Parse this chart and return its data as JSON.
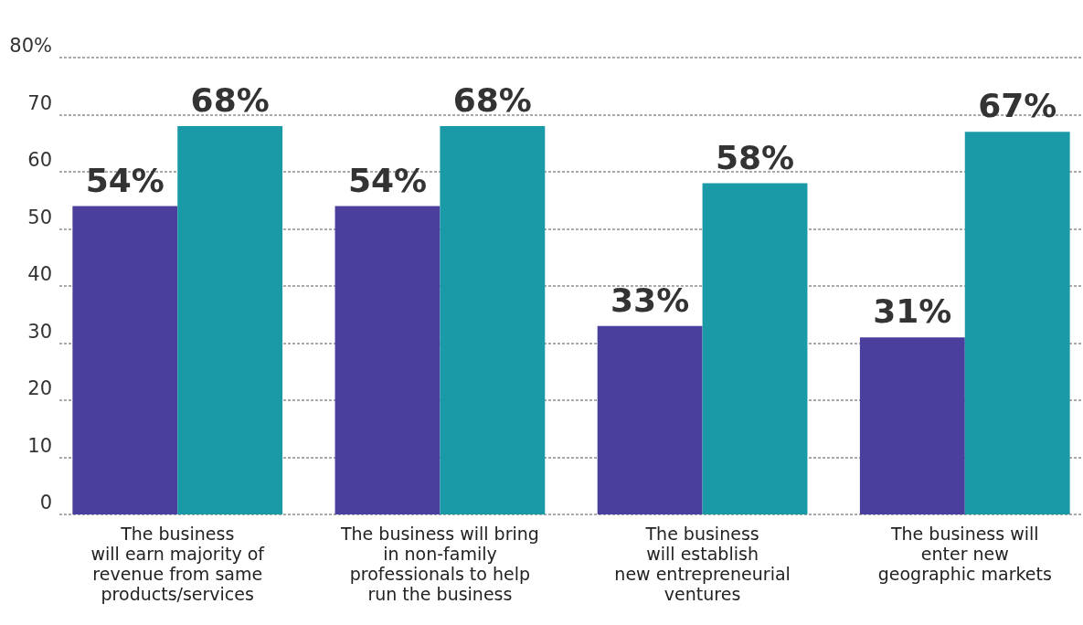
{
  "chart_data": {
    "type": "bar",
    "categories": [
      "The business\nwill earn majority of\nrevenue from same\nproducts/services",
      "The business will bring\nin non-family\nprofessionals to help\nrun the business",
      "The business\nwill establish\nnew entrepreneurial\nventures",
      "The business will\nenter new\ngeographic markets"
    ],
    "series": [
      {
        "color": "#4b3f9e",
        "values": [
          54,
          54,
          33,
          31
        ],
        "value_labels": [
          "54%",
          "54%",
          "33%",
          "31%"
        ]
      },
      {
        "color": "#1a9aa6",
        "values": [
          68,
          68,
          58,
          67
        ],
        "value_labels": [
          "68%",
          "68%",
          "58%",
          "67%"
        ]
      }
    ],
    "ylim": [
      0,
      80
    ],
    "yticks": [
      0,
      10,
      20,
      30,
      40,
      50,
      60,
      70,
      {
        "value": 80,
        "label": "80%"
      }
    ],
    "grid": "y",
    "legend": false
  }
}
